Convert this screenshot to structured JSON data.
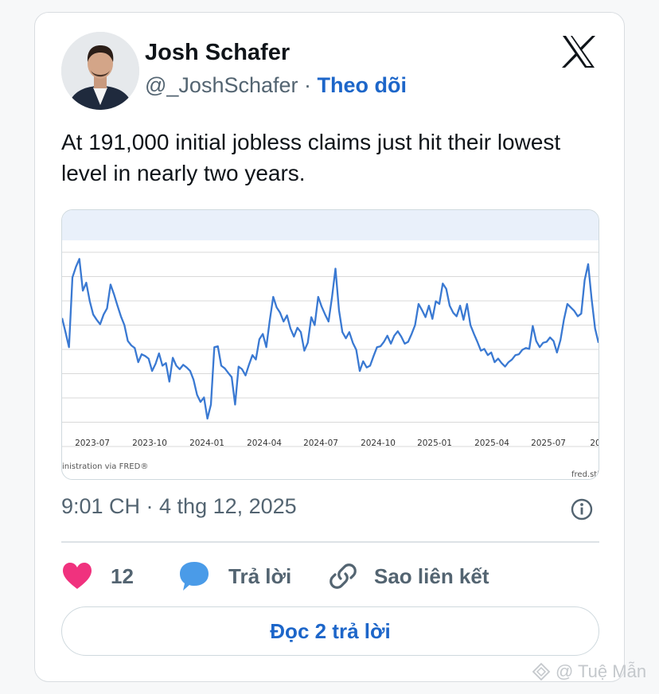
{
  "tweet": {
    "author_name": "Josh Schafer",
    "handle": "@_JoshSchafer",
    "separator": "·",
    "follow_label": "Theo dõi",
    "text": "At 191,000 initial jobless claims just hit their lowest level in nearly two years.",
    "timestamp": "9:01 CH · 4 thg 12, 2025",
    "likes_count": "12",
    "reply_label": "Trả lời",
    "copy_link_label": "Sao liên kết",
    "read_replies_label": "Đọc 2 trả lời",
    "watermark": "@ Tuệ Mẫn"
  },
  "icons": {
    "platform": "x-logo-icon",
    "info": "info-icon",
    "like": "heart-icon",
    "reply": "speech-bubble-icon",
    "link": "link-icon"
  },
  "colors": {
    "accent": "#1d66c9",
    "like": "#f0327e",
    "reply": "#4a9be8",
    "line": "#3a79d2"
  },
  "chart_data": {
    "type": "line",
    "x_tick_labels": [
      "2023-07",
      "2023-10",
      "2024-01",
      "2024-04",
      "2024-07",
      "2024-10",
      "2025-01",
      "2025-04",
      "2025-07",
      "20"
    ],
    "source_left": "inistration via FRED®",
    "source_right": "fred.stl",
    "grid": true,
    "series": [
      {
        "values": [
          58.2,
          56.6,
          54.9,
          62.8,
          64.0,
          64.9,
          61.3,
          62.2,
          60.1,
          58.6,
          58.0,
          57.5,
          58.6,
          59.3,
          62.0,
          60.9,
          59.6,
          58.4,
          57.4,
          55.6,
          55.1,
          54.8,
          53.2,
          54.1,
          53.9,
          53.6,
          52.2,
          53.0,
          54.2,
          52.8,
          53.1,
          51.0,
          53.7,
          52.8,
          52.4,
          52.9,
          52.6,
          52.2,
          51.2,
          49.5,
          48.7,
          49.2,
          46.8,
          48.4,
          54.9,
          55.0,
          52.8,
          52.5,
          52.0,
          51.5,
          48.4,
          52.7,
          52.4,
          51.7,
          52.9,
          54.0,
          53.5,
          55.8,
          56.4,
          54.9,
          57.9,
          60.6,
          59.4,
          58.8,
          57.8,
          58.5,
          57.0,
          56.1,
          57.1,
          56.6,
          54.5,
          55.4,
          58.3,
          57.4,
          60.6,
          59.5,
          58.6,
          57.8,
          60.6,
          63.8,
          59.1,
          56.6,
          55.9,
          56.6,
          55.4,
          54.6,
          52.2,
          53.3,
          52.6,
          52.8,
          53.9,
          54.9,
          55.0,
          55.5,
          56.2,
          55.3,
          56.2,
          56.7,
          56.1,
          55.3,
          55.5,
          56.4,
          57.4,
          59.8,
          59.1,
          58.3,
          59.6,
          58.1,
          60.1,
          59.8,
          62.1,
          61.5,
          59.6,
          58.8,
          58.4,
          59.6,
          58.0,
          59.8,
          57.4,
          56.4,
          55.5,
          54.5,
          54.7,
          54.0,
          54.3,
          53.2,
          53.6,
          53.1,
          52.7,
          53.2,
          53.5,
          54.0,
          54.1,
          54.6,
          54.8,
          54.7,
          57.3,
          55.6,
          54.9,
          55.4,
          55.5,
          56.0,
          55.6,
          54.3,
          55.7,
          58.0,
          59.8,
          59.4,
          59.0,
          58.4,
          58.7,
          62.5,
          64.3,
          60.4,
          57.0,
          55.4
        ]
      }
    ]
  }
}
